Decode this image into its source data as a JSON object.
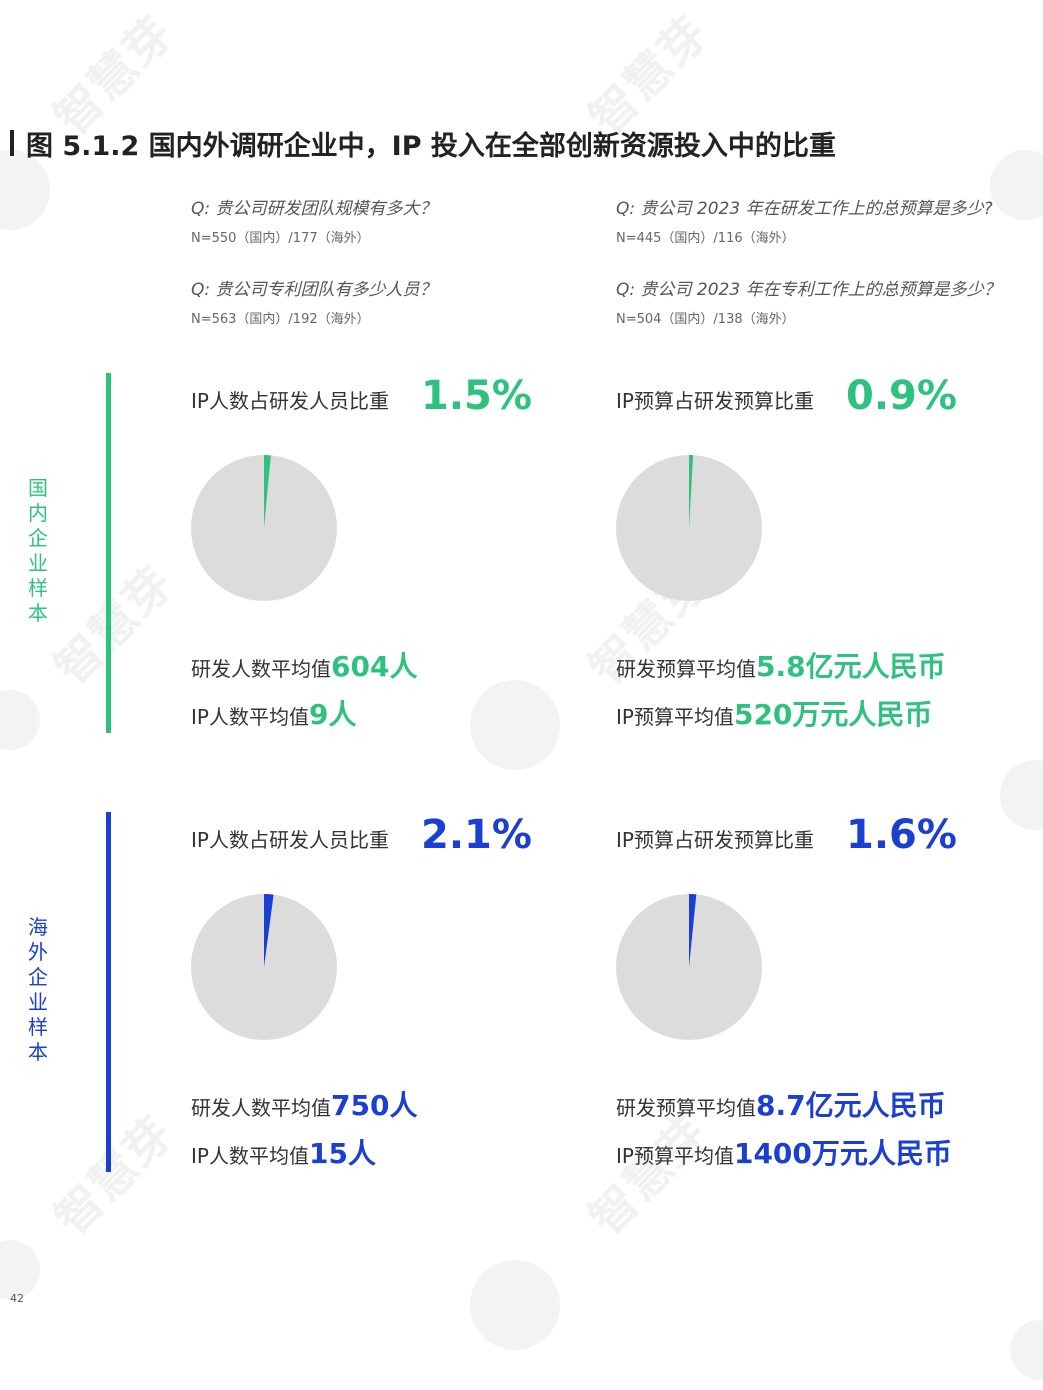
{
  "page": {
    "title": "图 5.1.2 国内外调研企业中，IP 投入在全部创新资源投入中的比重",
    "page_number": "42",
    "watermark": "智慧芽"
  },
  "questions": [
    {
      "q": "Q: 贵公司研发团队规模有多大？",
      "n": "N=550（国内）/177（海外）"
    },
    {
      "q": "Q: 贵公司 2023 年在研发工作上的总预算是多少?",
      "n": "N=445（国内）/116（海外）"
    },
    {
      "q": "Q: 贵公司专利团队有多少人员？",
      "n": "N=563（国内）/192（海外）"
    },
    {
      "q": "Q: 贵公司 2023 年在专利工作上的总预算是多少？",
      "n": "N=504（国内）/138（海外）"
    }
  ],
  "colors": {
    "domestic": "#2ec27e",
    "overseas": "#1a3fd1",
    "pie_base": "#dcdcdc"
  },
  "sections": [
    {
      "label": "国内企业样本",
      "color": "#2ec27e",
      "panels": [
        {
          "ratio_label": "IP人数占研发人员比重",
          "ratio_value": "1.5%",
          "avg1_label": "研发人数平均值",
          "avg1_value": "604人",
          "avg2_label": "IP人数平均值",
          "avg2_value": "9人"
        },
        {
          "ratio_label": "IP预算占研发预算比重",
          "ratio_value": "0.9%",
          "avg1_label": "研发预算平均值",
          "avg1_value": "5.8亿元人民币",
          "avg2_label": "IP预算平均值",
          "avg2_value": "520万元人民币"
        }
      ]
    },
    {
      "label": "海外企业样本",
      "color": "#1a3fd1",
      "panels": [
        {
          "ratio_label": "IP人数占研发人员比重",
          "ratio_value": "2.1%",
          "avg1_label": "研发人数平均值",
          "avg1_value": "750人",
          "avg2_label": "IP人数平均值",
          "avg2_value": "15人"
        },
        {
          "ratio_label": "IP预算占研发预算比重",
          "ratio_value": "1.6%",
          "avg1_label": "研发预算平均值",
          "avg1_value": "8.7亿元人民币",
          "avg2_label": "IP预算平均值",
          "avg2_value": "1400万元人民币"
        }
      ]
    }
  ],
  "chart_data": [
    {
      "type": "pie",
      "categories": [
        "IP人数",
        ""
      ],
      "values": [
        1.5,
        98.5
      ]
    },
    {
      "type": "pie",
      "categories": [
        "IP预算",
        ""
      ],
      "values": [
        0.9,
        99.1
      ]
    },
    {
      "type": "pie",
      "categories": [
        "IP人数",
        ""
      ],
      "values": [
        2.1,
        97.9
      ]
    },
    {
      "type": "pie",
      "categories": [
        "IP预算",
        ""
      ],
      "values": [
        1.6,
        98.4
      ]
    }
  ]
}
